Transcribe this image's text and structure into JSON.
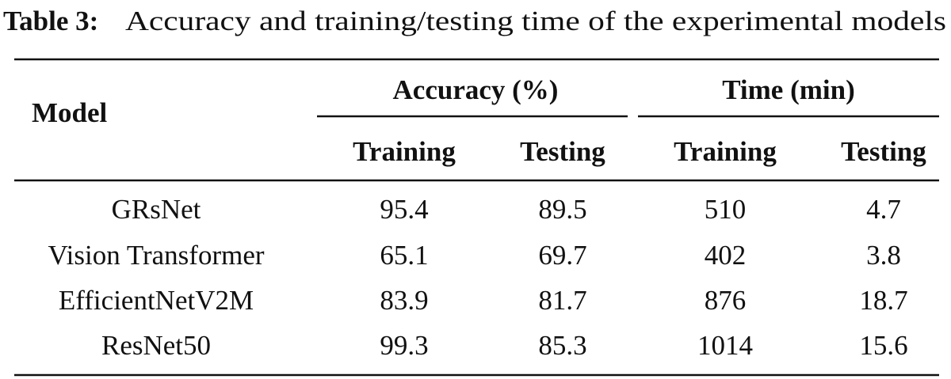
{
  "caption": {
    "label": "Table 3:",
    "text": "Accuracy and training/testing time of the experimental models"
  },
  "table": {
    "header": {
      "model": "Model",
      "groups": [
        "Accuracy (%)",
        "Time (min)"
      ],
      "subheaders": [
        "Training",
        "Testing",
        "Training",
        "Testing"
      ]
    },
    "rows": [
      [
        "GRsNet",
        "95.4",
        "89.5",
        "510",
        "4.7"
      ],
      [
        "Vision Transformer",
        "65.1",
        "69.7",
        "402",
        "3.8"
      ],
      [
        "EfficientNetV2M",
        "83.9",
        "81.7",
        "876",
        "18.7"
      ],
      [
        "ResNet50",
        "99.3",
        "85.3",
        "1014",
        "15.6"
      ]
    ]
  }
}
